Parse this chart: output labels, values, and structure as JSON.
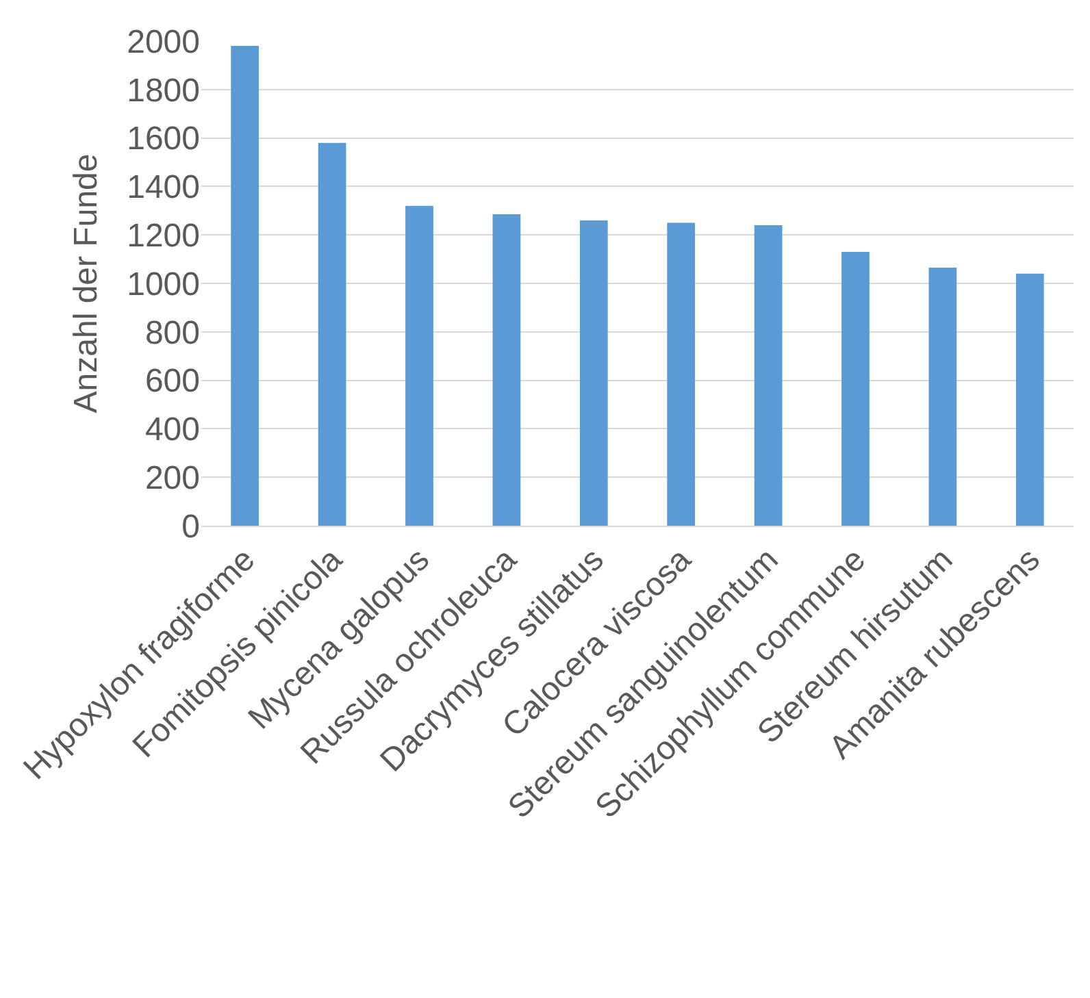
{
  "chart_data": {
    "type": "bar",
    "ylabel": "Anzahl der Funde",
    "categories": [
      "Hypoxylon fragiforme",
      "Fomitopsis pinicola",
      "Mycena galopus",
      "Russula ochroleuca",
      "Dacrymyces stillatus",
      "Calocera viscosa",
      "Stereum sanguinolentum",
      "Schizophyllum commune",
      "Stereum hirsutum",
      "Amanita rubescens"
    ],
    "values": [
      1980,
      1580,
      1320,
      1285,
      1260,
      1250,
      1240,
      1130,
      1065,
      1040
    ],
    "color": "#5b9bd5",
    "ylim": [
      0,
      2000
    ],
    "yticks": [
      0,
      200,
      400,
      600,
      800,
      1000,
      1200,
      1400,
      1600,
      1800,
      2000
    ],
    "grid": "y"
  }
}
